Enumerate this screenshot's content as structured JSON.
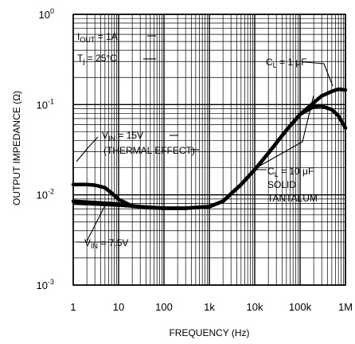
{
  "chart_data": {
    "type": "line",
    "xlabel": "FREQUENCY (Hz)",
    "ylabel": "OUTPUT IMPEDANCE (Ω)",
    "x_scale": "log",
    "y_scale": "log",
    "xlim": [
      1,
      1000000
    ],
    "ylim": [
      0.001,
      1
    ],
    "grid": true,
    "x_ticks": [
      "1",
      "10",
      "100",
      "1k",
      "10k",
      "100k",
      "1M"
    ],
    "y_ticks": [
      {
        "base": "10",
        "exp": "0"
      },
      {
        "base": "10",
        "exp": "-1"
      },
      {
        "base": "10",
        "exp": "-2"
      },
      {
        "base": "10",
        "exp": "-3"
      }
    ],
    "conditions": {
      "iout": {
        "sym": "I",
        "sub": "OUT",
        "rest": " = 1A"
      },
      "tj": {
        "sym": "T",
        "sub": "j",
        "rest": " = 25°C"
      }
    },
    "annotations": {
      "cl1": {
        "sym": "C",
        "sub": "L",
        "rest": " = 1 μF"
      },
      "cl10": {
        "sym": "C",
        "sub": "L",
        "rest": " = 10 μF"
      },
      "solid": "SOLID",
      "tantalum": "TANTALUM",
      "vin15": {
        "sym": "V",
        "sub": "IN",
        "rest": " = 15V"
      },
      "thermal": "(THERMAL EFFECT)",
      "vin75": {
        "sym": "V",
        "sub": "IN",
        "rest": " = 7.5V"
      }
    },
    "series": [
      {
        "x": [
          1,
          2,
          3,
          5,
          7,
          10,
          20,
          40,
          100,
          300,
          1000,
          2000,
          5000,
          10000,
          20000,
          50000,
          100000,
          200000,
          300000,
          500000,
          700000,
          1000000
        ],
        "y": [
          0.013,
          0.013,
          0.0128,
          0.012,
          0.0105,
          0.0089,
          0.0075,
          0.0072,
          0.0071,
          0.0071,
          0.0074,
          0.0085,
          0.013,
          0.019,
          0.029,
          0.052,
          0.078,
          0.105,
          0.125,
          0.14,
          0.148,
          0.145
        ]
      },
      {
        "x": [
          1,
          3,
          10,
          30,
          100,
          300,
          1000,
          2000,
          5000,
          10000,
          20000,
          50000,
          100000,
          200000,
          300000,
          500000,
          700000,
          1000000
        ],
        "y": [
          0.0085,
          0.0082,
          0.0079,
          0.0074,
          0.0071,
          0.0071,
          0.0074,
          0.0085,
          0.013,
          0.019,
          0.029,
          0.052,
          0.078,
          0.095,
          0.096,
          0.088,
          0.075,
          0.055
        ]
      },
      {
        "x": [
          1,
          3,
          10,
          30,
          100,
          300,
          1000,
          2000,
          5000
        ],
        "y": [
          0.0079,
          0.0077,
          0.0075,
          0.0072,
          0.007,
          0.007,
          0.0073,
          0.0083,
          0.0125
        ]
      }
    ]
  }
}
